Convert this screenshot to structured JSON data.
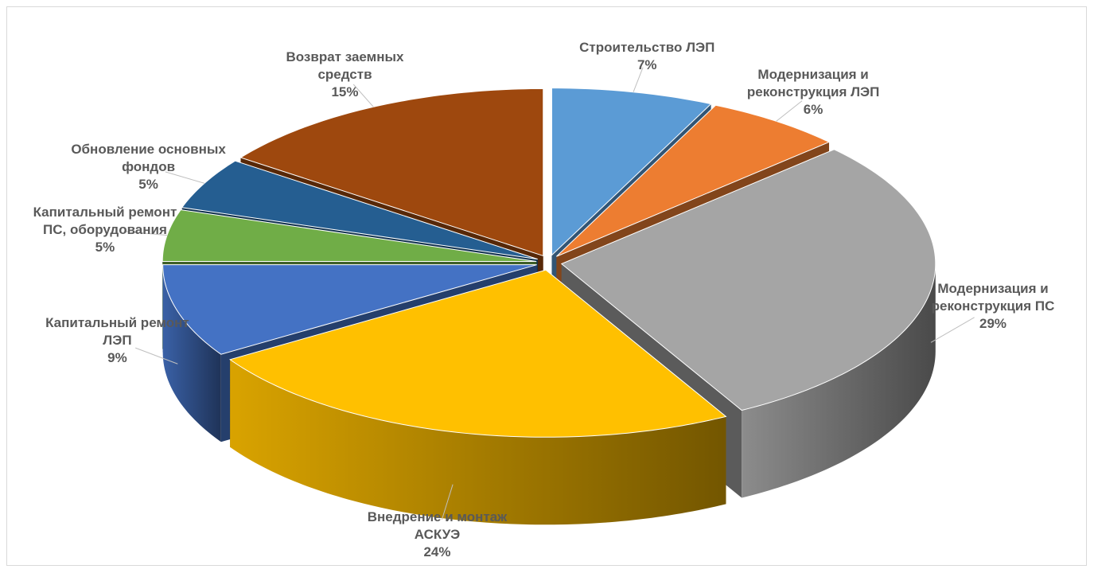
{
  "chart_data": {
    "type": "pie3d",
    "categories": [
      "Строительство ЛЭП",
      "Модернизация и реконструкция ЛЭП",
      "Модернизация  и реконструкция ПС",
      "Внедрение и монтаж АСКУЭ",
      "Капитальный ремонт ЛЭП",
      "Капитальный ремонт ПС, оборудования",
      "Обновление основных фондов",
      "Возврат заемных средств"
    ],
    "values": [
      7,
      6,
      29,
      24,
      9,
      5,
      5,
      15
    ],
    "value_labels": [
      "7%",
      "6%",
      "29%",
      "24%",
      "9%",
      "5%",
      "5%",
      "15%"
    ],
    "colors": [
      "#5b9bd5",
      "#ed7d31",
      "#a5a5a5",
      "#ffc000",
      "#4472c4",
      "#70ad47",
      "#255e91",
      "#9e480e"
    ]
  }
}
